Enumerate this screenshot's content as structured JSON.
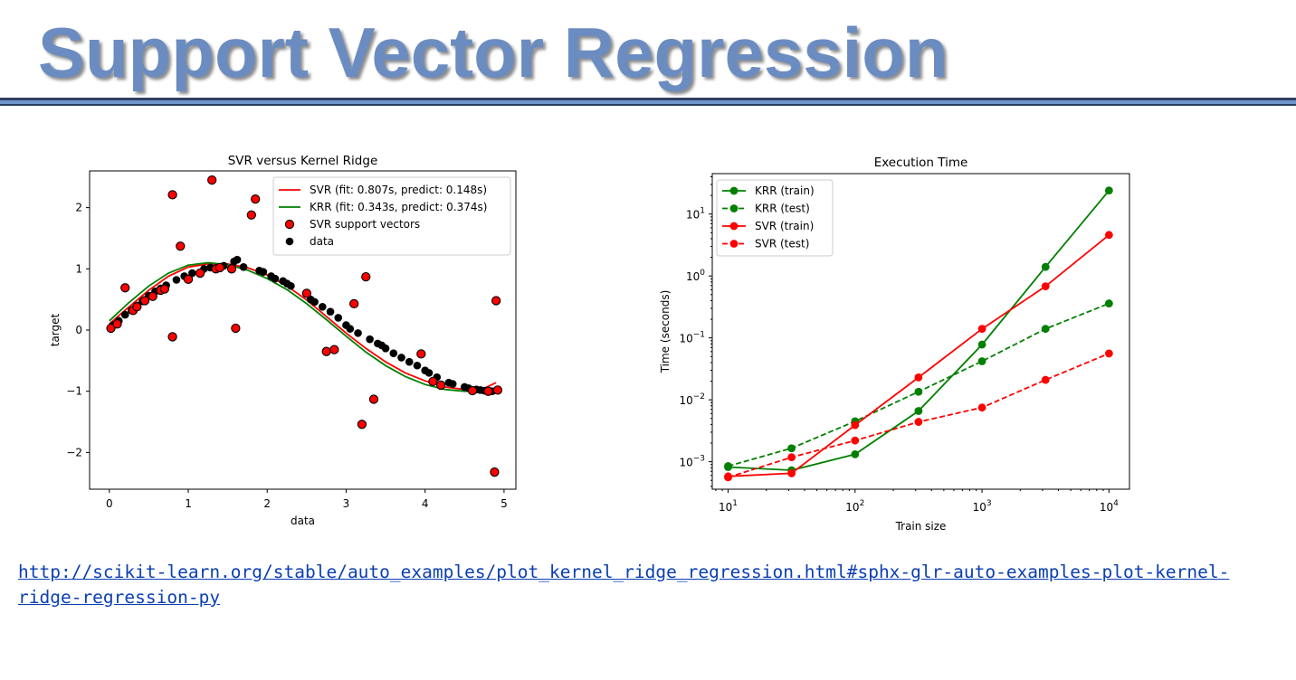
{
  "slide": {
    "title": "Support Vector Regression",
    "link_line1": "http://scikit-learn.org/stable/auto_examples/plot_kernel_ridge_regression.html#sphx-glr-auto-examples-plot-kernel-",
    "link_line2": "ridge-regression-py"
  },
  "chart_data": [
    {
      "type": "scatter",
      "title": "SVR versus Kernel Ridge",
      "xlabel": "data",
      "ylabel": "target",
      "xlim": [
        -0.25,
        5.15
      ],
      "ylim": [
        -2.6,
        2.6
      ],
      "xticks": [
        "0",
        "1",
        "2",
        "3",
        "4",
        "5"
      ],
      "yticks": [
        "−2",
        "−1",
        "0",
        "1",
        "2"
      ],
      "legend": "top-right",
      "colors": {
        "svr": "#ff0000",
        "krr": "#008000",
        "data": "#000000",
        "sv_fill": "#ff0000"
      },
      "series": [
        {
          "name": "SVR (fit: 0.807s, predict: 0.148s)",
          "kind": "line",
          "x": [
            0,
            0.25,
            0.5,
            0.75,
            1.0,
            1.25,
            1.5,
            1.75,
            2.0,
            2.25,
            2.5,
            2.75,
            3.0,
            3.25,
            3.5,
            3.75,
            4.0,
            4.25,
            4.5,
            4.75,
            4.9
          ],
          "y": [
            0.1,
            0.38,
            0.65,
            0.88,
            1.03,
            1.08,
            1.08,
            1.02,
            0.9,
            0.72,
            0.49,
            0.22,
            -0.05,
            -0.3,
            -0.52,
            -0.7,
            -0.83,
            -0.93,
            -0.97,
            -0.95,
            -0.86
          ]
        },
        {
          "name": "KRR (fit: 0.343s, predict: 0.374s)",
          "kind": "line",
          "x": [
            0,
            0.25,
            0.5,
            0.75,
            1.0,
            1.25,
            1.5,
            1.75,
            2.0,
            2.25,
            2.5,
            2.75,
            3.0,
            3.25,
            3.5,
            3.75,
            4.0,
            4.25,
            4.5,
            4.75,
            4.9
          ],
          "y": [
            0.15,
            0.45,
            0.72,
            0.93,
            1.06,
            1.1,
            1.07,
            0.98,
            0.84,
            0.66,
            0.43,
            0.17,
            -0.1,
            -0.36,
            -0.58,
            -0.76,
            -0.89,
            -0.97,
            -1.0,
            -0.99,
            -0.97
          ]
        },
        {
          "name": "SVR support vectors",
          "kind": "points",
          "x": [
            0.02,
            0.1,
            0.2,
            0.3,
            0.35,
            0.45,
            0.55,
            0.65,
            0.7,
            0.8,
            0.8,
            0.9,
            1.0,
            1.15,
            1.3,
            1.35,
            1.4,
            1.55,
            1.6,
            1.8,
            1.85,
            2.5,
            2.75,
            2.85,
            3.1,
            3.2,
            3.25,
            3.35,
            3.95,
            4.1,
            4.2,
            4.6,
            4.8,
            4.88,
            4.9,
            4.92
          ],
          "y": [
            0.03,
            0.1,
            0.69,
            0.32,
            0.38,
            0.48,
            0.55,
            0.65,
            0.67,
            -0.11,
            2.21,
            1.37,
            0.83,
            0.93,
            2.45,
            1.0,
            1.02,
            1.0,
            0.03,
            1.88,
            2.14,
            0.6,
            -0.35,
            -0.32,
            0.43,
            -1.54,
            0.87,
            -1.13,
            -0.39,
            -0.84,
            -0.9,
            -0.99,
            -1.0,
            -2.32,
            0.48,
            -0.98
          ]
        },
        {
          "name": "data",
          "kind": "points",
          "x": [
            0.05,
            0.12,
            0.2,
            0.28,
            0.35,
            0.42,
            0.5,
            0.58,
            0.65,
            0.72,
            0.85,
            0.95,
            1.05,
            1.2,
            1.28,
            1.45,
            1.58,
            1.62,
            1.7,
            1.9,
            1.95,
            2.05,
            2.1,
            2.2,
            2.25,
            2.3,
            2.55,
            2.6,
            2.7,
            2.8,
            2.9,
            3.0,
            3.05,
            3.15,
            3.3,
            3.4,
            3.45,
            3.5,
            3.6,
            3.7,
            3.8,
            3.9,
            4.0,
            4.05,
            4.15,
            4.3,
            4.35,
            4.5,
            4.55,
            4.65,
            4.7,
            4.75,
            4.85
          ],
          "y": [
            0.08,
            0.15,
            0.25,
            0.32,
            0.4,
            0.47,
            0.56,
            0.63,
            0.68,
            0.73,
            0.82,
            0.88,
            0.93,
            1.0,
            1.02,
            1.05,
            1.12,
            1.15,
            1.03,
            0.97,
            0.95,
            0.88,
            0.84,
            0.8,
            0.76,
            0.72,
            0.5,
            0.46,
            0.38,
            0.3,
            0.2,
            0.08,
            0.02,
            -0.05,
            -0.15,
            -0.22,
            -0.25,
            -0.3,
            -0.38,
            -0.45,
            -0.52,
            -0.58,
            -0.66,
            -0.7,
            -0.77,
            -0.86,
            -0.88,
            -0.93,
            -0.95,
            -0.97,
            -0.98,
            -0.99,
            -1.0
          ]
        }
      ]
    },
    {
      "type": "line",
      "title": "Execution Time",
      "xlabel": "Train size",
      "ylabel": "Time (seconds)",
      "xscale": "log",
      "yscale": "log",
      "xlim": [
        7.5,
        14500
      ],
      "ylim": [
        0.00036,
        45
      ],
      "x": [
        10,
        31.6,
        100,
        316,
        1000,
        3162,
        10000
      ],
      "xticks": [
        {
          "base": "10",
          "exp": "1"
        },
        {
          "base": "10",
          "exp": "2"
        },
        {
          "base": "10",
          "exp": "3"
        },
        {
          "base": "10",
          "exp": "4"
        }
      ],
      "yticks": [
        {
          "base": "10",
          "exp": "−3"
        },
        {
          "base": "10",
          "exp": "−2"
        },
        {
          "base": "10",
          "exp": "−1"
        },
        {
          "base": "10",
          "exp": "0"
        },
        {
          "base": "10",
          "exp": "1"
        }
      ],
      "legend": "top-left",
      "series": [
        {
          "name": "KRR (train)",
          "color": "#008000",
          "dash": "solid",
          "values": [
            0.00082,
            0.00073,
            0.00132,
            0.0066,
            0.078,
            1.4,
            24
          ]
        },
        {
          "name": "KRR (test)",
          "color": "#008000",
          "dash": "dashed",
          "values": [
            0.00085,
            0.00165,
            0.0045,
            0.0135,
            0.042,
            0.14,
            0.36
          ]
        },
        {
          "name": "SVR (train)",
          "color": "#ff0000",
          "dash": "solid",
          "values": [
            0.00058,
            0.00065,
            0.0039,
            0.023,
            0.14,
            0.68,
            4.6
          ]
        },
        {
          "name": "SVR (test)",
          "color": "#ff0000",
          "dash": "dashed",
          "values": [
            0.00056,
            0.00118,
            0.0022,
            0.0044,
            0.0075,
            0.021,
            0.056
          ]
        }
      ]
    }
  ]
}
